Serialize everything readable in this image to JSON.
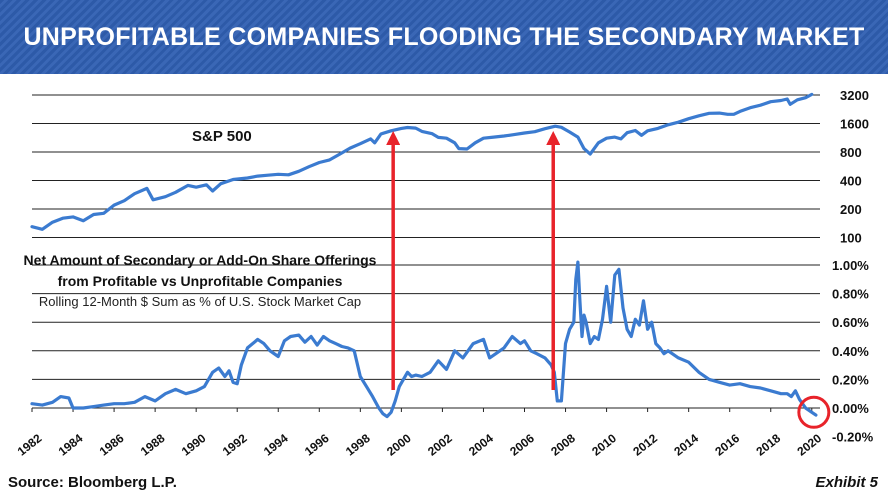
{
  "header": {
    "title": "UNPROFITABLE COMPANIES FLOODING THE SECONDARY MARKET"
  },
  "footer": {
    "source": "Source: Bloomberg L.P.",
    "exhibit": "Exhibit 5"
  },
  "colors": {
    "banner": "#2d5aa8",
    "line": "#3b7bd0",
    "arrow": "#e8232a",
    "circle": "#e8232a"
  },
  "chart_data": [
    {
      "type": "line",
      "title": "S&P 500",
      "scale": "log",
      "yticks": [
        100,
        200,
        400,
        800,
        1600,
        3200
      ],
      "ytick_labels": [
        "100",
        "200",
        "400",
        "800",
        "1600",
        "3200"
      ],
      "series": [
        {
          "x": [
            1982.0,
            1982.5,
            1983.0,
            1983.5,
            1984.0,
            1984.5,
            1985.0,
            1985.5,
            1986.0,
            1986.5,
            1987.0,
            1987.6,
            1987.9,
            1988.5,
            1989.0,
            1989.6,
            1990.0,
            1990.5,
            1990.8,
            1991.2,
            1991.8,
            1992.5,
            1993.0,
            1993.5,
            1994.0,
            1994.5,
            1995.0,
            1995.5,
            1996.0,
            1996.5,
            1997.0,
            1997.5,
            1998.0,
            1998.5,
            1998.7,
            1999.0,
            1999.5,
            2000.0,
            2000.3,
            2000.7,
            2001.0,
            2001.5,
            2001.8,
            2002.2,
            2002.6,
            2002.8,
            2003.2,
            2003.6,
            2004.0,
            2004.5,
            2005.0,
            2005.5,
            2006.0,
            2006.5,
            2007.0,
            2007.5,
            2007.8,
            2008.2,
            2008.6,
            2008.9,
            2009.2,
            2009.6,
            2010.0,
            2010.4,
            2010.7,
            2011.0,
            2011.4,
            2011.7,
            2012.0,
            2012.5,
            2013.0,
            2013.5,
            2014.0,
            2014.5,
            2015.0,
            2015.5,
            2015.9,
            2016.2,
            2016.5,
            2017.0,
            2017.5,
            2018.0,
            2018.5,
            2018.8,
            2018.95,
            2019.3,
            2019.7,
            2020.0
          ],
          "values": [
            130,
            122,
            145,
            160,
            165,
            150,
            175,
            180,
            220,
            245,
            290,
            330,
            250,
            270,
            300,
            355,
            340,
            360,
            310,
            370,
            410,
            425,
            445,
            455,
            465,
            460,
            500,
            560,
            620,
            660,
            760,
            880,
            980,
            1100,
            1000,
            1240,
            1340,
            1420,
            1450,
            1430,
            1320,
            1250,
            1140,
            1120,
            1000,
            870,
            860,
            1000,
            1120,
            1150,
            1180,
            1220,
            1270,
            1310,
            1410,
            1500,
            1460,
            1300,
            1150,
            870,
            760,
            1000,
            1120,
            1150,
            1100,
            1280,
            1350,
            1200,
            1340,
            1420,
            1550,
            1650,
            1800,
            1930,
            2050,
            2060,
            2000,
            2000,
            2150,
            2350,
            2500,
            2720,
            2800,
            2900,
            2550,
            2850,
            3000,
            3250
          ]
        }
      ]
    },
    {
      "type": "line",
      "title": "Net Amount of Secondary or Add-On Share Offerings from Profitable vs Unprofitable Companies",
      "subtitle": "Rolling 12-Month $ Sum as % of U.S. Stock Market Cap",
      "ylim": [
        -0.2,
        1.0
      ],
      "yticks": [
        -0.2,
        0.0,
        0.2,
        0.4,
        0.6,
        0.8,
        1.0
      ],
      "ytick_labels": [
        "-0.20%",
        "0.00%",
        "0.20%",
        "0.40%",
        "0.60%",
        "0.80%",
        "1.00%"
      ],
      "xticks": [
        1982,
        1984,
        1986,
        1988,
        1990,
        1992,
        1994,
        1996,
        1998,
        2000,
        2002,
        2004,
        2006,
        2008,
        2010,
        2012,
        2014,
        2016,
        2018,
        2020
      ],
      "series": [
        {
          "x": [
            1982.0,
            1982.5,
            1983.0,
            1983.4,
            1983.8,
            1984.0,
            1984.5,
            1985.0,
            1985.5,
            1986.0,
            1986.5,
            1987.0,
            1987.5,
            1988.0,
            1988.5,
            1989.0,
            1989.5,
            1990.0,
            1990.4,
            1990.8,
            1991.1,
            1991.4,
            1991.6,
            1991.8,
            1992.0,
            1992.2,
            1992.5,
            1993.0,
            1993.3,
            1993.6,
            1994.0,
            1994.3,
            1994.6,
            1995.0,
            1995.3,
            1995.6,
            1995.9,
            1996.2,
            1996.5,
            1996.8,
            1997.1,
            1997.4,
            1997.7,
            1998.0,
            1998.3,
            1998.6,
            1998.9,
            1999.1,
            1999.3,
            1999.5,
            1999.7,
            1999.9,
            2000.1,
            2000.3,
            2000.5,
            2000.7,
            2001.0,
            2001.4,
            2001.8,
            2002.2,
            2002.6,
            2003.0,
            2003.5,
            2004.0,
            2004.3,
            2004.6,
            2005.0,
            2005.4,
            2005.8,
            2006.0,
            2006.3,
            2006.6,
            2007.0,
            2007.3,
            2007.45,
            2007.6,
            2007.8,
            2008.0,
            2008.2,
            2008.4,
            2008.5,
            2008.6,
            2008.7,
            2008.8,
            2008.9,
            2009.0,
            2009.2,
            2009.4,
            2009.6,
            2009.8,
            2010.0,
            2010.2,
            2010.4,
            2010.6,
            2010.8,
            2011.0,
            2011.2,
            2011.4,
            2011.6,
            2011.8,
            2012.0,
            2012.2,
            2012.4,
            2012.6,
            2012.8,
            2013.0,
            2013.5,
            2014.0,
            2014.5,
            2015.0,
            2015.5,
            2016.0,
            2016.5,
            2017.0,
            2017.5,
            2018.0,
            2018.5,
            2018.8,
            2019.0,
            2019.2,
            2019.4,
            2019.7,
            2020.0,
            2020.2
          ],
          "values": [
            0.03,
            0.02,
            0.04,
            0.08,
            0.07,
            0.0,
            0.0,
            0.01,
            0.02,
            0.03,
            0.03,
            0.04,
            0.08,
            0.05,
            0.1,
            0.13,
            0.1,
            0.12,
            0.15,
            0.25,
            0.28,
            0.22,
            0.26,
            0.18,
            0.17,
            0.3,
            0.42,
            0.48,
            0.45,
            0.4,
            0.36,
            0.47,
            0.5,
            0.51,
            0.46,
            0.5,
            0.44,
            0.5,
            0.47,
            0.45,
            0.43,
            0.42,
            0.4,
            0.22,
            0.15,
            0.08,
            0.0,
            -0.04,
            -0.06,
            -0.03,
            0.05,
            0.15,
            0.2,
            0.25,
            0.22,
            0.23,
            0.22,
            0.25,
            0.33,
            0.27,
            0.4,
            0.35,
            0.45,
            0.48,
            0.35,
            0.38,
            0.42,
            0.5,
            0.45,
            0.47,
            0.4,
            0.38,
            0.35,
            0.3,
            0.25,
            0.05,
            0.05,
            0.45,
            0.55,
            0.6,
            0.9,
            1.02,
            0.75,
            0.5,
            0.65,
            0.6,
            0.45,
            0.5,
            0.48,
            0.62,
            0.85,
            0.6,
            0.93,
            0.97,
            0.7,
            0.55,
            0.5,
            0.62,
            0.58,
            0.75,
            0.55,
            0.6,
            0.45,
            0.42,
            0.38,
            0.4,
            0.35,
            0.32,
            0.25,
            0.2,
            0.18,
            0.16,
            0.17,
            0.15,
            0.14,
            0.12,
            0.1,
            0.1,
            0.08,
            0.12,
            0.06,
            0.0,
            -0.03,
            -0.05
          ]
        }
      ]
    }
  ],
  "annotations": {
    "sp_label": "S&P 500",
    "lower_title_line1": "Net Amount of Secondary or Add-On Share Offerings",
    "lower_title_line2": "from Profitable vs Unprofitable Companies",
    "lower_subtitle": "Rolling 12-Month $ Sum as % of U.S. Stock Market Cap"
  }
}
